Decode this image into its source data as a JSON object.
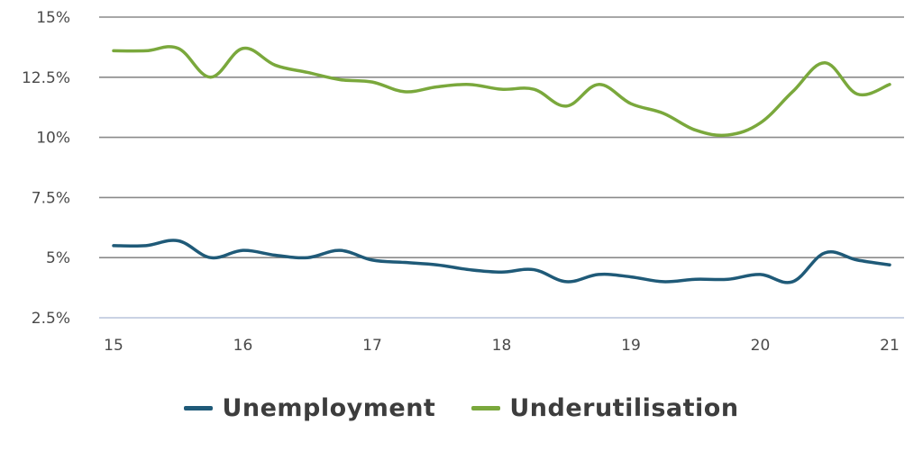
{
  "chart_data": {
    "type": "line",
    "title": "",
    "xlabel": "",
    "ylabel": "",
    "x_ticks": [
      "15",
      "16",
      "17",
      "18",
      "19",
      "20",
      "21"
    ],
    "y_ticks": [
      {
        "value": 2.5,
        "label": "2.5%"
      },
      {
        "value": 5,
        "label": "5%"
      },
      {
        "value": 7.5,
        "label": "7.5%"
      },
      {
        "value": 10,
        "label": "10%"
      },
      {
        "value": 12.5,
        "label": "12.5%"
      },
      {
        "value": 15,
        "label": "15%"
      }
    ],
    "xlim": [
      15,
      21
    ],
    "ylim": [
      2.5,
      15
    ],
    "grid": true,
    "legend_position": "bottom-center",
    "x": [
      15.0,
      15.25,
      15.5,
      15.75,
      16.0,
      16.25,
      16.5,
      16.75,
      17.0,
      17.25,
      17.5,
      17.75,
      18.0,
      18.25,
      18.5,
      18.75,
      19.0,
      19.25,
      19.5,
      19.75,
      20.0,
      20.25,
      20.5,
      20.75,
      21.0
    ],
    "series": [
      {
        "name": "Unemployment",
        "color": "#1f5a78",
        "values": [
          5.5,
          5.5,
          5.7,
          5.0,
          5.3,
          5.1,
          5.0,
          5.3,
          4.9,
          4.8,
          4.7,
          4.5,
          4.4,
          4.5,
          4.0,
          4.3,
          4.2,
          4.0,
          4.1,
          4.1,
          4.3,
          4.0,
          5.2,
          4.9,
          4.7
        ]
      },
      {
        "name": "Underutilisation",
        "color": "#7aa83c",
        "values": [
          13.6,
          13.6,
          13.7,
          12.5,
          13.7,
          13.0,
          12.7,
          12.4,
          12.3,
          11.9,
          12.1,
          12.2,
          12.0,
          12.0,
          11.3,
          12.2,
          11.4,
          11.0,
          10.3,
          10.1,
          10.6,
          11.9,
          13.1,
          11.8,
          12.2
        ]
      }
    ]
  }
}
